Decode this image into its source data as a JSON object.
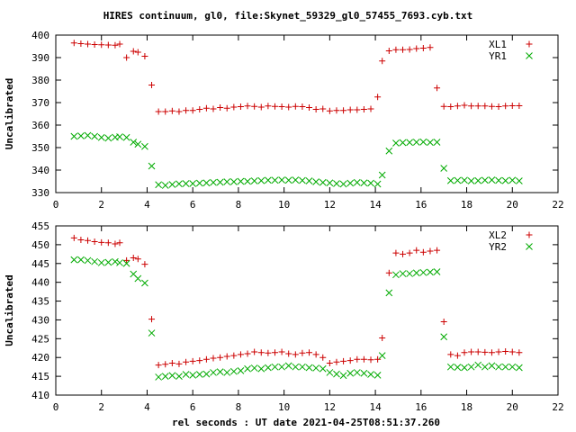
{
  "title": "HIRES continuum, gl0, file:Skynet_59329_gl0_57455_7693.cyb.txt",
  "xlabel": "rel seconds : UT date 2021-04-25T08:51:37.260",
  "chart_data": [
    {
      "type": "scatter",
      "title": "HIRES continuum, gl0, file:Skynet_59329_gl0_57455_7693.cyb.txt",
      "ylabel": "Uncalibrated",
      "xlabel": "",
      "xlim": [
        0,
        22
      ],
      "ylim": [
        330,
        400
      ],
      "xticks": [
        0,
        2,
        4,
        6,
        8,
        10,
        12,
        14,
        16,
        18,
        20,
        22
      ],
      "yticks": [
        330,
        340,
        350,
        360,
        370,
        380,
        390,
        400
      ],
      "grid": false,
      "legend": "top-right",
      "series": [
        {
          "name": "XL1",
          "marker": "+",
          "color": "#cc0000",
          "x": [
            0.8,
            1.1,
            1.4,
            1.7,
            2.0,
            2.3,
            2.6,
            2.8,
            3.1,
            3.4,
            3.6,
            3.9,
            4.2,
            4.5,
            4.8,
            5.1,
            5.4,
            5.7,
            6.0,
            6.3,
            6.6,
            6.9,
            7.2,
            7.5,
            7.8,
            8.1,
            8.4,
            8.7,
            9.0,
            9.3,
            9.6,
            9.9,
            10.2,
            10.5,
            10.8,
            11.1,
            11.4,
            11.7,
            12.0,
            12.3,
            12.6,
            12.9,
            13.2,
            13.5,
            13.8,
            14.1,
            14.3,
            14.6,
            14.9,
            15.2,
            15.5,
            15.8,
            16.1,
            16.4,
            16.7,
            17.0,
            17.3,
            17.6,
            17.9,
            18.2,
            18.5,
            18.8,
            19.1,
            19.4,
            19.7,
            20.0,
            20.3
          ],
          "y": [
            396.5,
            396.2,
            396.0,
            395.8,
            395.7,
            395.6,
            395.5,
            396.0,
            390.0,
            392.8,
            392.4,
            390.6,
            377.8,
            366.0,
            366.0,
            366.3,
            366.0,
            366.5,
            366.5,
            367.0,
            367.5,
            367.2,
            367.8,
            367.5,
            368.0,
            368.2,
            368.5,
            368.3,
            368.0,
            368.5,
            368.3,
            368.2,
            368.0,
            368.3,
            368.2,
            367.8,
            367.0,
            367.2,
            366.3,
            366.5,
            366.5,
            366.8,
            366.8,
            367.0,
            367.2,
            372.5,
            388.5,
            393.0,
            393.5,
            393.5,
            393.6,
            394.0,
            394.2,
            394.5,
            376.5,
            368.3,
            368.2,
            368.5,
            368.8,
            368.5,
            368.5,
            368.5,
            368.3,
            368.2,
            368.5,
            368.6,
            368.6
          ]
        },
        {
          "name": "YR1",
          "marker": "x",
          "color": "#00aa00",
          "x": [
            0.8,
            1.1,
            1.4,
            1.7,
            2.0,
            2.3,
            2.6,
            2.8,
            3.1,
            3.4,
            3.6,
            3.9,
            4.2,
            4.5,
            4.8,
            5.1,
            5.4,
            5.7,
            6.0,
            6.3,
            6.6,
            6.9,
            7.2,
            7.5,
            7.8,
            8.1,
            8.4,
            8.7,
            9.0,
            9.3,
            9.6,
            9.9,
            10.2,
            10.5,
            10.8,
            11.1,
            11.4,
            11.7,
            12.0,
            12.3,
            12.6,
            12.9,
            13.2,
            13.5,
            13.8,
            14.1,
            14.3,
            14.6,
            14.9,
            15.2,
            15.5,
            15.8,
            16.1,
            16.4,
            16.7,
            17.0,
            17.3,
            17.6,
            17.9,
            18.2,
            18.5,
            18.8,
            19.1,
            19.4,
            19.7,
            20.0,
            20.3
          ],
          "y": [
            355.0,
            355.2,
            355.4,
            355.0,
            354.5,
            354.2,
            354.6,
            354.8,
            354.5,
            352.4,
            351.5,
            350.5,
            341.8,
            333.5,
            333.2,
            333.6,
            333.9,
            334.0,
            334.0,
            334.2,
            334.3,
            334.5,
            334.6,
            334.8,
            334.8,
            335.0,
            335.0,
            335.2,
            335.3,
            335.5,
            335.5,
            335.6,
            335.5,
            335.6,
            335.4,
            335.2,
            334.8,
            334.5,
            334.3,
            334.0,
            333.8,
            334.2,
            334.5,
            334.3,
            334.2,
            333.8,
            337.8,
            348.5,
            352.0,
            352.2,
            352.3,
            352.4,
            352.5,
            352.3,
            352.4,
            340.8,
            335.3,
            335.4,
            335.5,
            335.2,
            335.3,
            335.5,
            335.6,
            335.4,
            335.3,
            335.5,
            335.2
          ]
        }
      ]
    },
    {
      "type": "scatter",
      "title": "",
      "ylabel": "Uncalibrated",
      "xlabel": "rel seconds : UT date 2021-04-25T08:51:37.260",
      "xlim": [
        0,
        22
      ],
      "ylim": [
        410,
        455
      ],
      "xticks": [
        0,
        2,
        4,
        6,
        8,
        10,
        12,
        14,
        16,
        18,
        20,
        22
      ],
      "yticks": [
        410,
        415,
        420,
        425,
        430,
        435,
        440,
        445,
        450,
        455
      ],
      "grid": false,
      "legend": "top-right",
      "series": [
        {
          "name": "XL2",
          "marker": "+",
          "color": "#cc0000",
          "x": [
            0.8,
            1.1,
            1.4,
            1.7,
            2.0,
            2.3,
            2.6,
            2.8,
            3.1,
            3.4,
            3.6,
            3.9,
            4.2,
            4.5,
            4.8,
            5.1,
            5.4,
            5.7,
            6.0,
            6.3,
            6.6,
            6.9,
            7.2,
            7.5,
            7.8,
            8.1,
            8.4,
            8.7,
            9.0,
            9.3,
            9.6,
            9.9,
            10.2,
            10.5,
            10.8,
            11.1,
            11.4,
            11.7,
            12.0,
            12.3,
            12.6,
            12.9,
            13.2,
            13.5,
            13.8,
            14.1,
            14.3,
            14.6,
            14.9,
            15.2,
            15.5,
            15.8,
            16.1,
            16.4,
            16.7,
            17.0,
            17.3,
            17.6,
            17.9,
            18.2,
            18.5,
            18.8,
            19.1,
            19.4,
            19.7,
            20.0,
            20.3
          ],
          "y": [
            451.8,
            451.3,
            451.1,
            450.8,
            450.6,
            450.5,
            450.2,
            450.5,
            445.8,
            446.5,
            446.2,
            444.8,
            430.2,
            418.0,
            418.2,
            418.5,
            418.3,
            418.8,
            419.0,
            419.2,
            419.5,
            419.8,
            420.0,
            420.3,
            420.5,
            420.8,
            421.0,
            421.5,
            421.3,
            421.2,
            421.3,
            421.5,
            421.0,
            420.8,
            421.2,
            421.3,
            420.8,
            420.0,
            418.5,
            418.8,
            419.0,
            419.2,
            419.5,
            419.5,
            419.4,
            419.5,
            425.2,
            442.5,
            447.8,
            447.5,
            447.8,
            448.5,
            448.0,
            448.3,
            448.5,
            429.5,
            420.8,
            420.5,
            421.3,
            421.5,
            421.5,
            421.4,
            421.3,
            421.5,
            421.6,
            421.5,
            421.3
          ]
        },
        {
          "name": "YR2",
          "marker": "x",
          "color": "#00aa00",
          "x": [
            0.8,
            1.1,
            1.4,
            1.7,
            2.0,
            2.3,
            2.6,
            2.8,
            3.1,
            3.4,
            3.6,
            3.9,
            4.2,
            4.5,
            4.8,
            5.1,
            5.4,
            5.7,
            6.0,
            6.3,
            6.6,
            6.9,
            7.2,
            7.5,
            7.8,
            8.1,
            8.4,
            8.7,
            9.0,
            9.3,
            9.6,
            9.9,
            10.2,
            10.5,
            10.8,
            11.1,
            11.4,
            11.7,
            12.0,
            12.3,
            12.6,
            12.9,
            13.2,
            13.5,
            13.8,
            14.1,
            14.3,
            14.6,
            14.9,
            15.2,
            15.5,
            15.8,
            16.1,
            16.4,
            16.7,
            17.0,
            17.3,
            17.6,
            17.9,
            18.2,
            18.5,
            18.8,
            19.1,
            19.4,
            19.7,
            20.0,
            20.3
          ],
          "y": [
            446.0,
            446.0,
            445.8,
            445.5,
            445.2,
            445.3,
            445.5,
            445.2,
            445.0,
            442.2,
            441.0,
            439.8,
            426.5,
            414.8,
            415.0,
            415.2,
            415.0,
            415.5,
            415.3,
            415.5,
            415.6,
            416.0,
            416.2,
            416.0,
            416.3,
            416.5,
            417.0,
            417.2,
            417.0,
            417.3,
            417.5,
            417.5,
            417.8,
            417.5,
            417.5,
            417.3,
            417.2,
            417.0,
            416.0,
            415.6,
            415.2,
            415.8,
            416.0,
            415.8,
            415.5,
            415.3,
            420.5,
            437.2,
            442.0,
            442.3,
            442.3,
            442.5,
            442.6,
            442.7,
            442.8,
            425.5,
            417.5,
            417.4,
            417.3,
            417.5,
            418.0,
            417.5,
            417.8,
            417.5,
            417.5,
            417.5,
            417.3
          ]
        }
      ]
    }
  ]
}
